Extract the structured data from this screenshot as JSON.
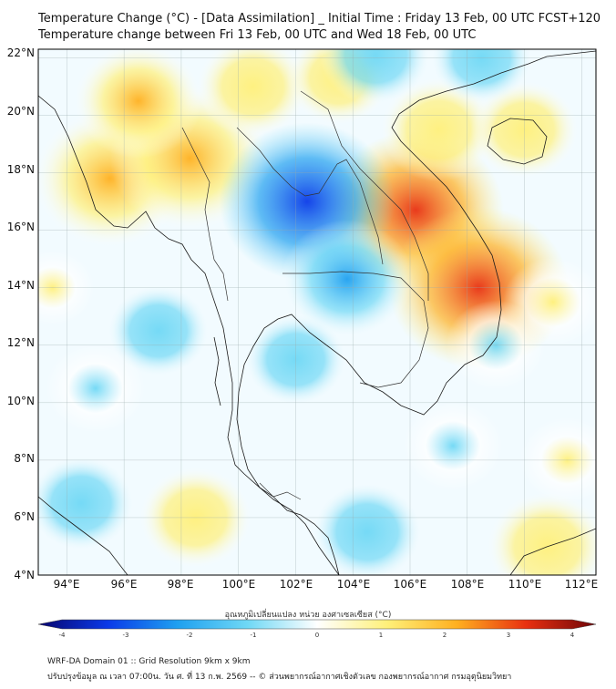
{
  "header": {
    "title_line1": "Temperature Change (°C) - [Data Assimilation] _ Initial Time : Friday 13 Feb, 00 UTC FCST+120",
    "title_line2": "Temperature change between Fri 13 Feb, 00 UTC and Wed 18 Feb, 00 UTC"
  },
  "map": {
    "lat_labels": [
      "22°N",
      "20°N",
      "18°N",
      "16°N",
      "14°N",
      "12°N",
      "10°N",
      "8°N",
      "6°N",
      "4°N"
    ],
    "lon_labels": [
      "94°E",
      "96°E",
      "98°E",
      "100°E",
      "102°E",
      "104°E",
      "106°E",
      "108°E",
      "110°E",
      "112°E"
    ],
    "extent": {
      "lon_min": 93,
      "lon_max": 112.5,
      "lat_min": 4,
      "lat_max": 22.3
    },
    "field_anomalies": [
      {
        "lon": 95.5,
        "lat": 17.8,
        "value": 2.2
      },
      {
        "lon": 98.3,
        "lat": 18.5,
        "value": 2.4
      },
      {
        "lon": 96.5,
        "lat": 20.5,
        "value": 1.6
      },
      {
        "lon": 100.5,
        "lat": 21.0,
        "value": 1.2
      },
      {
        "lon": 103.5,
        "lat": 21.3,
        "value": 1.0
      },
      {
        "lon": 106.2,
        "lat": 16.7,
        "value": 2.8
      },
      {
        "lon": 108.4,
        "lat": 14.0,
        "value": 2.9
      },
      {
        "lon": 107.0,
        "lat": 19.5,
        "value": 1.3
      },
      {
        "lon": 102.4,
        "lat": 17.0,
        "value": -2.8
      },
      {
        "lon": 103.8,
        "lat": 14.3,
        "value": -1.7
      },
      {
        "lon": 102.0,
        "lat": 11.5,
        "value": -1.0
      },
      {
        "lon": 97.2,
        "lat": 12.5,
        "value": -1.0
      },
      {
        "lon": 95.0,
        "lat": 10.5,
        "value": -0.9
      },
      {
        "lon": 94.5,
        "lat": 6.5,
        "value": -1.1
      },
      {
        "lon": 107.5,
        "lat": 8.5,
        "value": -0.9
      },
      {
        "lon": 104.5,
        "lat": 5.5,
        "value": -1.2
      },
      {
        "lon": 109.0,
        "lat": 12.0,
        "value": -0.9
      },
      {
        "lon": 98.5,
        "lat": 6.0,
        "value": 1.2
      },
      {
        "lon": 110.8,
        "lat": 5.0,
        "value": 1.4
      },
      {
        "lon": 111.5,
        "lat": 8.0,
        "value": 0.8
      },
      {
        "lon": 111.0,
        "lat": 13.5,
        "value": 0.9
      },
      {
        "lon": 110.0,
        "lat": 19.5,
        "value": 1.1
      },
      {
        "lon": 104.8,
        "lat": 22.1,
        "value": -1.2
      },
      {
        "lon": 108.5,
        "lat": 22.0,
        "value": -1.0
      },
      {
        "lon": 93.5,
        "lat": 14.0,
        "value": 0.5
      }
    ]
  },
  "colorbar": {
    "title": "อุณหภูมิเปลี่ยนแปลง หน่วย องศาเซลเซียส (°C)",
    "ticks": [
      "-4",
      "-3",
      "-2",
      "-1",
      "0",
      "1",
      "2",
      "3",
      "4"
    ],
    "min": -4,
    "max": 4
  },
  "footer": {
    "line1": "WRF-DA Domain 01 :: Grid Resolution 9km x 9km",
    "line2": "ปรับปรุงข้อมูล ณ เวลา 07:00น. วัน ศ. ที่ 13 ก.พ. 2569 -- © ส่วนพยากรณ์อากาศเชิงตัวเลข กองพยากรณ์อากาศ กรมอุตุนิยมวิทยา"
  },
  "colors": {
    "neg4": "#08056e",
    "neg3": "#0a3ae8",
    "neg2": "#1fa0f0",
    "neg1": "#6fd8f5",
    "zero": "#ffffff",
    "pos1": "#fff07a",
    "pos2": "#ffb020",
    "pos3": "#e83010",
    "pos4": "#6e0508"
  }
}
